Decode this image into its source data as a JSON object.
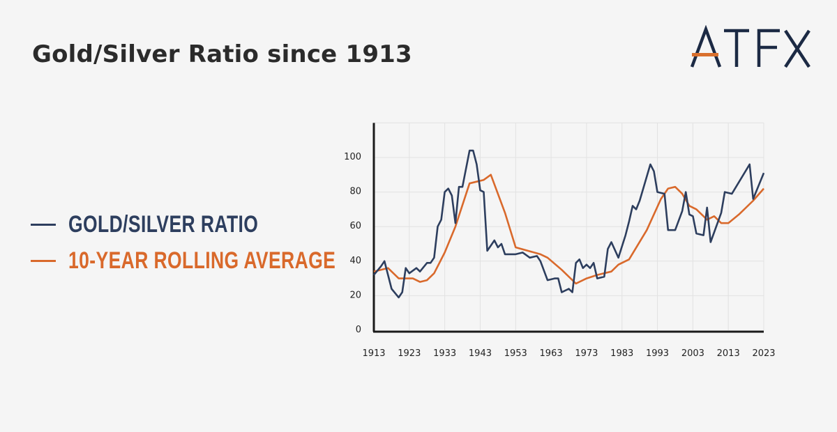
{
  "title": "Gold/Silver Ratio since 1913",
  "logo": {
    "text": "ATFX",
    "color": "#1c2a44",
    "accent": "#d9702e"
  },
  "colors": {
    "ratio": "#2d3e5e",
    "average": "#d9692b",
    "grid": "#e2e2e2",
    "axis": "#1a1a1a"
  },
  "chart_data": {
    "type": "line",
    "title": "",
    "xlabel": "",
    "ylabel": "",
    "xlim": [
      1913,
      2023
    ],
    "ylim": [
      0,
      120
    ],
    "grid": true,
    "legend_placement": "left",
    "x_ticks": [
      "1913",
      "1923",
      "1933",
      "1943",
      "1953",
      "1963",
      "1973",
      "1983",
      "1993",
      "2003",
      "2013",
      "2023"
    ],
    "y_ticks": [
      "0",
      "20",
      "40",
      "60",
      "80",
      "100"
    ],
    "series": [
      {
        "name": "GOLD/SILVER RATIO",
        "color": "#2d3e5e",
        "points": [
          [
            1913,
            32
          ],
          [
            1915,
            37
          ],
          [
            1916,
            40
          ],
          [
            1918,
            24
          ],
          [
            1920,
            19
          ],
          [
            1921,
            22
          ],
          [
            1922,
            36
          ],
          [
            1923,
            33
          ],
          [
            1925,
            36
          ],
          [
            1926,
            34
          ],
          [
            1928,
            39
          ],
          [
            1929,
            39
          ],
          [
            1930,
            42
          ],
          [
            1931,
            60
          ],
          [
            1932,
            64
          ],
          [
            1933,
            80
          ],
          [
            1934,
            82
          ],
          [
            1935,
            78
          ],
          [
            1936,
            62
          ],
          [
            1937,
            83
          ],
          [
            1938,
            83
          ],
          [
            1940,
            104
          ],
          [
            1941,
            104
          ],
          [
            1942,
            96
          ],
          [
            1943,
            81
          ],
          [
            1944,
            80
          ],
          [
            1945,
            46
          ],
          [
            1946,
            49
          ],
          [
            1947,
            52
          ],
          [
            1948,
            48
          ],
          [
            1949,
            50
          ],
          [
            1950,
            44
          ],
          [
            1953,
            44
          ],
          [
            1955,
            45
          ],
          [
            1957,
            42
          ],
          [
            1959,
            43
          ],
          [
            1960,
            40
          ],
          [
            1962,
            29
          ],
          [
            1964,
            30
          ],
          [
            1965,
            30
          ],
          [
            1966,
            22
          ],
          [
            1968,
            24
          ],
          [
            1969,
            22
          ],
          [
            1970,
            39
          ],
          [
            1971,
            41
          ],
          [
            1972,
            36
          ],
          [
            1973,
            38
          ],
          [
            1974,
            36
          ],
          [
            1975,
            39
          ],
          [
            1976,
            30
          ],
          [
            1978,
            31
          ],
          [
            1979,
            47
          ],
          [
            1980,
            51
          ],
          [
            1982,
            42
          ],
          [
            1984,
            55
          ],
          [
            1985,
            63
          ],
          [
            1986,
            72
          ],
          [
            1987,
            70
          ],
          [
            1988,
            75
          ],
          [
            1991,
            96
          ],
          [
            1992,
            92
          ],
          [
            1993,
            80
          ],
          [
            1995,
            79
          ],
          [
            1996,
            58
          ],
          [
            1998,
            58
          ],
          [
            2000,
            69
          ],
          [
            2001,
            80
          ],
          [
            2002,
            67
          ],
          [
            2003,
            66
          ],
          [
            2004,
            56
          ],
          [
            2006,
            55
          ],
          [
            2007,
            71
          ],
          [
            2008,
            51
          ],
          [
            2011,
            68
          ],
          [
            2012,
            80
          ],
          [
            2014,
            79
          ],
          [
            2019,
            96
          ],
          [
            2020,
            76
          ],
          [
            2023,
            91
          ]
        ]
      },
      {
        "name": "10-YEAR ROLLING AVERAGE",
        "color": "#d9692b",
        "points": [
          [
            1913,
            34
          ],
          [
            1917,
            36
          ],
          [
            1920,
            30
          ],
          [
            1924,
            30
          ],
          [
            1926,
            28
          ],
          [
            1928,
            29
          ],
          [
            1930,
            33
          ],
          [
            1933,
            45
          ],
          [
            1936,
            60
          ],
          [
            1940,
            85
          ],
          [
            1942,
            86
          ],
          [
            1944,
            87
          ],
          [
            1946,
            90
          ],
          [
            1950,
            68
          ],
          [
            1953,
            48
          ],
          [
            1960,
            44
          ],
          [
            1962,
            42
          ],
          [
            1966,
            35
          ],
          [
            1970,
            27
          ],
          [
            1973,
            30
          ],
          [
            1976,
            32
          ],
          [
            1980,
            34
          ],
          [
            1982,
            38
          ],
          [
            1985,
            41
          ],
          [
            1990,
            58
          ],
          [
            1994,
            76
          ],
          [
            1996,
            82
          ],
          [
            1998,
            83
          ],
          [
            2000,
            79
          ],
          [
            2002,
            72
          ],
          [
            2004,
            70
          ],
          [
            2006,
            66
          ],
          [
            2007,
            64
          ],
          [
            2009,
            66
          ],
          [
            2011,
            62
          ],
          [
            2013,
            62
          ],
          [
            2016,
            67
          ],
          [
            2020,
            75
          ],
          [
            2023,
            82
          ]
        ]
      }
    ]
  }
}
